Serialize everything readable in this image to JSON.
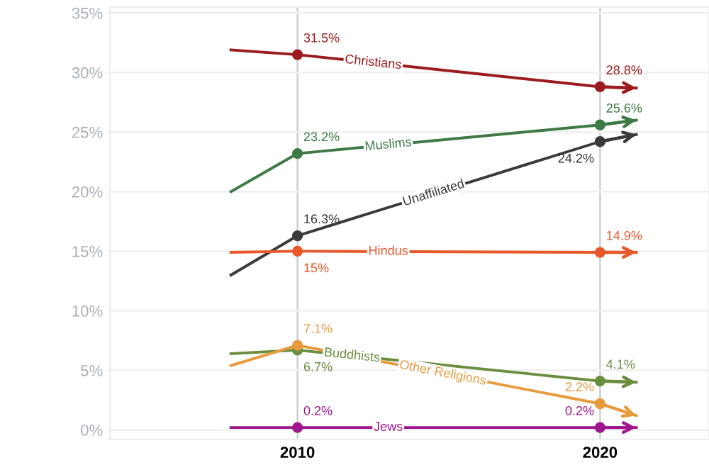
{
  "chart_data": {
    "type": "line",
    "x": [
      2007.8,
      2010,
      2020,
      2021.2
    ],
    "series": [
      {
        "name": "Christians",
        "color": "#9b1b1e",
        "values": [
          31.9,
          31.5,
          28.8,
          28.7
        ],
        "value_labels": [
          null,
          "31.5%",
          "28.8%",
          null
        ]
      },
      {
        "name": "Muslims",
        "color": "#3d7a45",
        "values": [
          20.0,
          23.2,
          25.6,
          26.0
        ],
        "value_labels": [
          null,
          "23.2%",
          "25.6%",
          null
        ]
      },
      {
        "name": "Unaffiliated",
        "color": "#3a3a3a",
        "values": [
          13.0,
          16.3,
          24.2,
          24.8
        ],
        "value_labels": [
          null,
          "16.3%",
          "24.2%",
          null
        ]
      },
      {
        "name": "Hindus",
        "color": "#e8582a",
        "values": [
          14.9,
          15,
          14.9,
          14.9
        ],
        "value_labels": [
          null,
          "15%",
          "14.9%",
          null
        ]
      },
      {
        "name": "Buddhists",
        "color": "#6b8e3e",
        "values": [
          6.4,
          6.7,
          4.1,
          4.0
        ],
        "value_labels": [
          null,
          "6.7%",
          "4.1%",
          null
        ]
      },
      {
        "name": "Other Religions",
        "color": "#e89a3c",
        "values": [
          5.4,
          7.1,
          2.2,
          1.2
        ],
        "value_labels": [
          null,
          "7.1%",
          "2.2%",
          null
        ]
      },
      {
        "name": "Jews",
        "color": "#a0168f",
        "values": [
          0.2,
          0.2,
          0.2,
          0.2
        ],
        "value_labels": [
          null,
          "0.2%",
          "0.2%",
          null
        ]
      }
    ],
    "xlim": [
      2003.8,
      2023.6
    ],
    "xticks": [
      2010,
      2020
    ],
    "ylim": [
      -0.8,
      35.5
    ],
    "yticks": [
      {
        "value": 0,
        "label": "0%"
      },
      {
        "value": 5,
        "label": "5%"
      },
      {
        "value": 10,
        "label": "10%"
      },
      {
        "value": 15,
        "label": "15%"
      },
      {
        "value": 20,
        "label": "20%"
      },
      {
        "value": 25,
        "label": "25%"
      },
      {
        "value": 30,
        "label": "30%"
      },
      {
        "value": 35,
        "label": "35%"
      }
    ],
    "grid": true,
    "marker": "circle",
    "line_style": "solid",
    "legend": false
  }
}
